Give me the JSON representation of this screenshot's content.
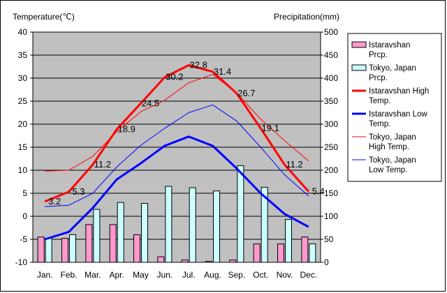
{
  "chart_data": {
    "type": "bar",
    "ylabel": "Temperature(℃)",
    "y2label": "Precipitation(mm)",
    "ylim": [
      -10,
      40
    ],
    "y2lim": [
      0,
      500
    ],
    "yticks": [
      -10,
      -5,
      0,
      5,
      10,
      15,
      20,
      25,
      30,
      35,
      40
    ],
    "y2ticks": [
      0,
      50,
      100,
      150,
      200,
      250,
      300,
      350,
      400,
      450,
      500
    ],
    "categories": [
      "Jan.",
      "Feb.",
      "Mar.",
      "Apr.",
      "May",
      "Jun.",
      "Jul.",
      "Aug.",
      "Sep.",
      "Oct.",
      "Nov.",
      "Dec."
    ],
    "bar_series": [
      {
        "name": "Istaravshan Prcp.",
        "color": "#ff99cc",
        "values": [
          55,
          52,
          82,
          82,
          60,
          12,
          5,
          2,
          5,
          40,
          40,
          55
        ]
      },
      {
        "name": "Tokyo, Japan Prcp.",
        "color": "#ccffff",
        "values": [
          52,
          60,
          115,
          130,
          128,
          165,
          162,
          155,
          210,
          163,
          93,
          40
        ]
      }
    ],
    "line_series": [
      {
        "name": "Istaravshan High Temp.",
        "color": "#ff0000",
        "width": 3,
        "values": [
          3.2,
          5.3,
          11.2,
          18.9,
          24.5,
          30.2,
          32.8,
          31.4,
          26.7,
          19.1,
          11.2,
          5.4
        ]
      },
      {
        "name": "Tokyo, Japan High Temp.",
        "color": "#ff0000",
        "width": 1,
        "values": [
          9.8,
          10.0,
          13.0,
          18.4,
          22.7,
          25.2,
          29.0,
          30.8,
          26.8,
          21.1,
          16.4,
          12.0
        ]
      },
      {
        "name": "Istaravshan Low Temp.",
        "color": "#0000ff",
        "width": 3,
        "values": [
          -5.0,
          -3.4,
          1.8,
          8.0,
          11.5,
          15.3,
          17.3,
          15.3,
          10.4,
          5.0,
          0.5,
          -2.3
        ]
      },
      {
        "name": "Tokyo, Japan Low Temp.",
        "color": "#0000ff",
        "width": 1,
        "values": [
          2.1,
          2.4,
          5.0,
          10.7,
          15.4,
          19.1,
          22.5,
          24.2,
          20.7,
          15.0,
          9.0,
          4.4
        ]
      }
    ],
    "data_labels": {
      "series": "Istaravshan High Temp.",
      "values": [
        "3.2",
        "5.3",
        "11.2",
        "18.9",
        "24.5",
        "30.2",
        "32.8",
        "31.4",
        "26.7",
        "19.1",
        "11.2",
        "5.4"
      ]
    },
    "legend": {
      "placement": "right",
      "entries": [
        {
          "lines": [
            "Istaravshan",
            "Prcp."
          ],
          "kind": "bar",
          "color": "#ff99cc"
        },
        {
          "lines": [
            "Tokyo, Japan",
            "Prcp."
          ],
          "kind": "bar",
          "color": "#ccffff"
        },
        {
          "lines": [
            "Istaravshan High",
            "Temp."
          ],
          "kind": "line",
          "color": "#ff0000",
          "width": 3
        },
        {
          "lines": [
            "Istaravshan Low",
            "Temp."
          ],
          "kind": "line",
          "color": "#0000ff",
          "width": 3
        },
        {
          "lines": [
            "Tokyo, Japan",
            "High Temp."
          ],
          "kind": "line",
          "color": "#ff0000",
          "width": 1
        },
        {
          "lines": [
            "Tokyo, Japan",
            "Low Temp."
          ],
          "kind": "line",
          "color": "#0000ff",
          "width": 1
        }
      ]
    },
    "plot_background": "#c0c0c0",
    "grid": true
  }
}
